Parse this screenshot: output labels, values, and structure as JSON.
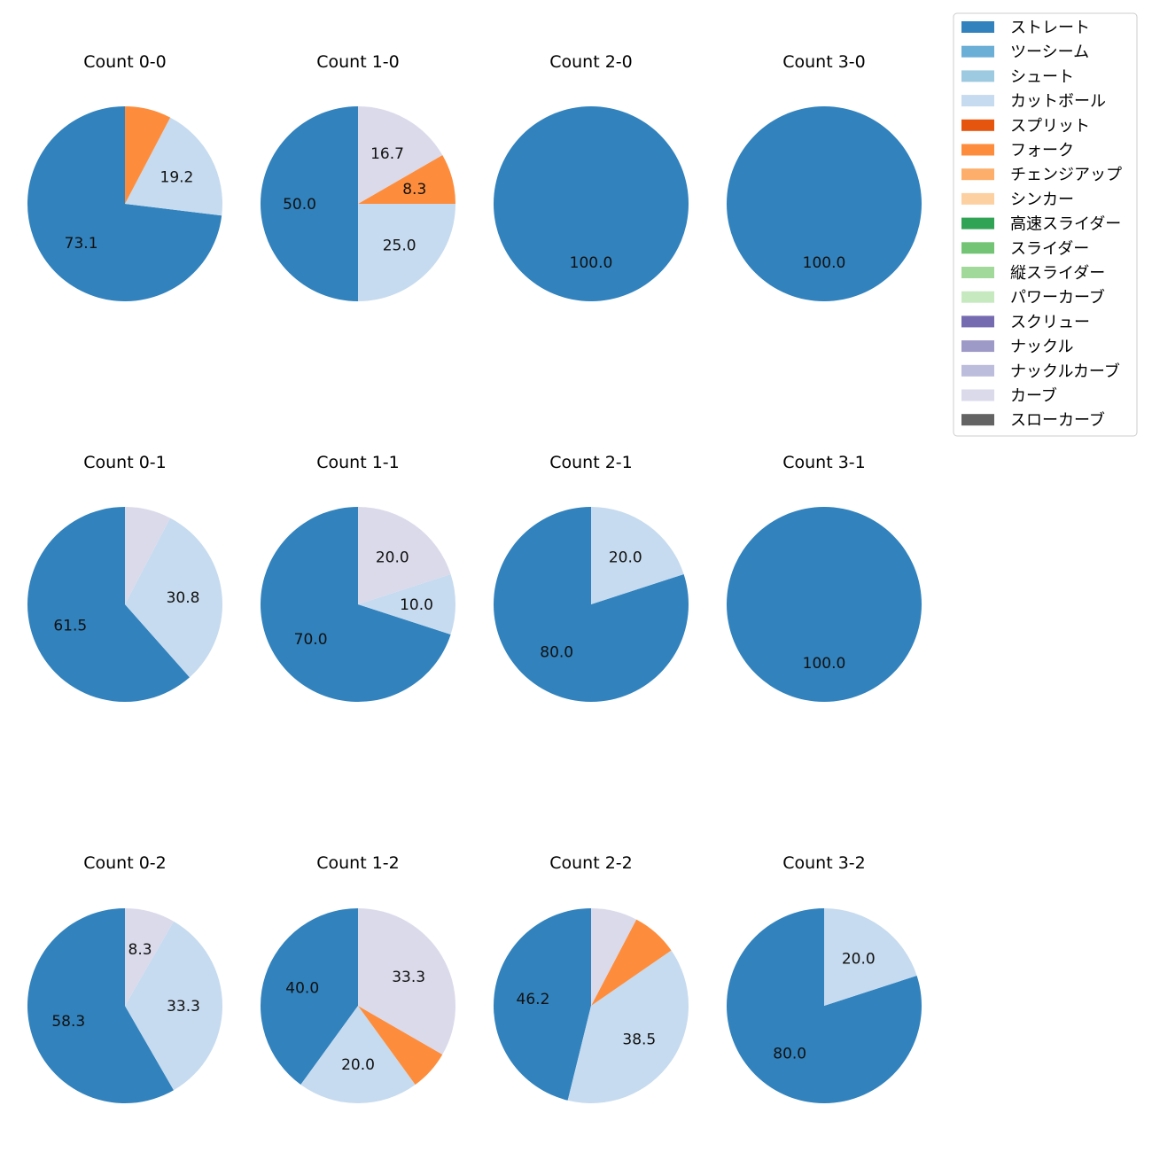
{
  "chart_data": {
    "type": "pie",
    "categories": [
      "ストレート",
      "ツーシーム",
      "シュート",
      "カットボール",
      "スプリット",
      "フォーク",
      "チェンジアップ",
      "シンカー",
      "高速スライダー",
      "スライダー",
      "縦スライダー",
      "パワーカーブ",
      "スクリュー",
      "ナックル",
      "ナックルカーブ",
      "カーブ",
      "スローカーブ"
    ],
    "colors": [
      "#3182bd",
      "#6baed6",
      "#9ecae1",
      "#c6dbef",
      "#e6550d",
      "#fd8d3c",
      "#fdae6b",
      "#fdd0a2",
      "#31a354",
      "#74c476",
      "#a1d99b",
      "#c7e9c0",
      "#756bb1",
      "#9e9ac8",
      "#bcbddc",
      "#dadaeb",
      "#636363"
    ],
    "label_threshold_pct": 8,
    "legend_position": "top-right",
    "charts": [
      {
        "title": "Count 0-0",
        "values": {
          "ストレート": 19,
          "カットボール": 5,
          "フォーク": 2
        }
      },
      {
        "title": "Count 1-0",
        "values": {
          "ストレート": 6,
          "カットボール": 3,
          "フォーク": 1,
          "カーブ": 2
        }
      },
      {
        "title": "Count 2-0",
        "values": {
          "ストレート": 3
        }
      },
      {
        "title": "Count 3-0",
        "values": {
          "ストレート": 1
        }
      },
      {
        "title": "Count 0-1",
        "values": {
          "ストレート": 8,
          "カットボール": 4,
          "カーブ": 1
        }
      },
      {
        "title": "Count 1-1",
        "values": {
          "ストレート": 7,
          "カットボール": 1,
          "カーブ": 2
        }
      },
      {
        "title": "Count 2-1",
        "values": {
          "ストレート": 4,
          "カットボール": 1
        }
      },
      {
        "title": "Count 3-1",
        "values": {
          "ストレート": 2
        }
      },
      {
        "title": "Count 0-2",
        "values": {
          "ストレート": 7,
          "カットボール": 4,
          "カーブ": 1
        }
      },
      {
        "title": "Count 1-2",
        "values": {
          "ストレート": 6,
          "カットボール": 3,
          "フォーク": 1,
          "カーブ": 5
        }
      },
      {
        "title": "Count 2-2",
        "values": {
          "ストレート": 6,
          "カットボール": 5,
          "フォーク": 1,
          "カーブ": 1
        }
      },
      {
        "title": "Count 3-2",
        "values": {
          "ストレート": 4,
          "カットボール": 1
        }
      }
    ]
  }
}
